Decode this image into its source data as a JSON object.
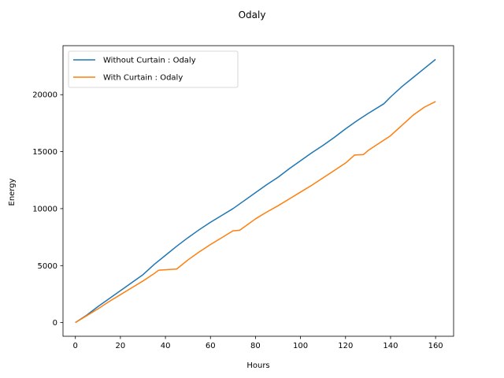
{
  "chart_data": {
    "type": "line",
    "title": "Odaly",
    "xlabel": "Hours",
    "ylabel": "Energy",
    "xlim": [
      -5.5,
      168
    ],
    "ylim": [
      -1200,
      24300
    ],
    "xticks": [
      0,
      20,
      40,
      60,
      80,
      100,
      120,
      140,
      160
    ],
    "yticks": [
      0,
      5000,
      10000,
      15000,
      20000
    ],
    "grid": false,
    "legend_position": "upper-left",
    "series": [
      {
        "name": "Without Curtain : Odaly",
        "color": "#1f77b4",
        "x": [
          0,
          5,
          10,
          15,
          20,
          25,
          30,
          35,
          40,
          45,
          50,
          55,
          60,
          65,
          70,
          75,
          80,
          85,
          90,
          95,
          100,
          105,
          110,
          115,
          120,
          125,
          130,
          137,
          140,
          145,
          150,
          155,
          160
        ],
        "y": [
          0,
          650,
          1400,
          2100,
          2800,
          3500,
          4200,
          5100,
          5900,
          6700,
          7450,
          8150,
          8800,
          9400,
          10000,
          10700,
          11400,
          12100,
          12750,
          13500,
          14200,
          14900,
          15550,
          16250,
          17000,
          17700,
          18350,
          19200,
          19800,
          20700,
          21500,
          22300,
          23100
        ]
      },
      {
        "name": "With Curtain : Odaly",
        "color": "#ff7f0e",
        "x": [
          0,
          5,
          10,
          15,
          20,
          25,
          30,
          35,
          37,
          45,
          50,
          55,
          60,
          65,
          70,
          73,
          80,
          85,
          90,
          95,
          100,
          105,
          110,
          115,
          120,
          124,
          128,
          130,
          135,
          140,
          145,
          150,
          155,
          160
        ],
        "y": [
          0,
          600,
          1200,
          1850,
          2450,
          3050,
          3650,
          4300,
          4600,
          4700,
          5500,
          6200,
          6850,
          7450,
          8050,
          8100,
          9100,
          9700,
          10250,
          10850,
          11450,
          12050,
          12700,
          13350,
          14000,
          14700,
          14750,
          15100,
          15750,
          16400,
          17300,
          18200,
          18900,
          19400
        ]
      }
    ]
  }
}
